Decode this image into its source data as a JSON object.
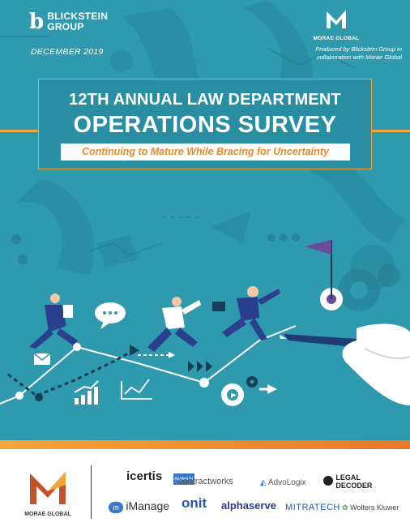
{
  "header": {
    "brand_mark": "b",
    "brand_name_line1": "BLICKSTEIN",
    "brand_name_line2": "GROUP",
    "date": "DECEMBER 2019",
    "partner_logo_label": "MORAE GLOBAL",
    "produced_by_line1": "Produced by Blickstein Group in",
    "produced_by_line2": "collaboration with Morae Global"
  },
  "title": {
    "line1": "12TH ANNUAL LAW DEPARTMENT",
    "line2": "OPERATIONS SURVEY",
    "subtitle": "Continuing to Mature While Bracing for Uncertainty"
  },
  "colors": {
    "background": "#2f9aae",
    "accent": "#f0a53c",
    "subtitle_text": "#e8892d",
    "flag": "#6b4c9a"
  },
  "footer": {
    "morae_label": "MORAE GLOBAL",
    "sponsors": {
      "icertis": "icertis",
      "icertis_tag": "Applied AI",
      "contractworks": "contractworks",
      "advologix": "AdvoLogix",
      "legal_decoder_line1": "LEGAL",
      "legal_decoder_line2": "DECODER",
      "imanage": "iManage",
      "onit": "onit",
      "alphaserve": "alphaserve",
      "mitratech": "MITRATECH",
      "wolters_kluwer": "Wolters Kluwer"
    }
  }
}
